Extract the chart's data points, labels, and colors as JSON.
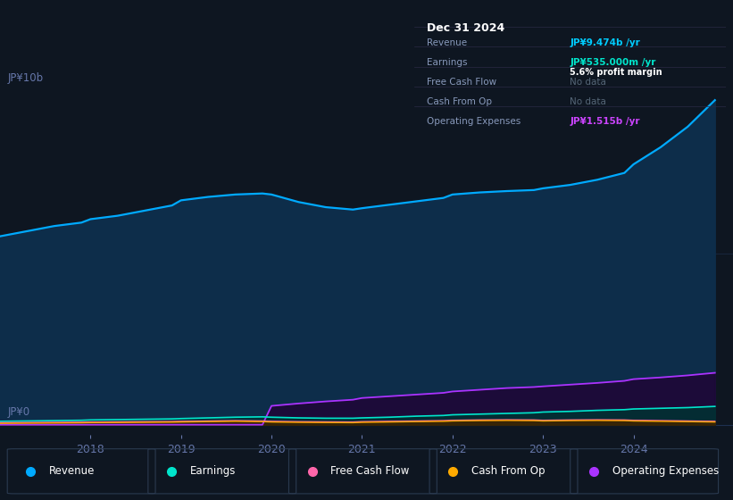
{
  "background_color": "#0e1621",
  "panel_bg_color": "#0e1621",
  "title_box": {
    "date": "Dec 31 2024",
    "rows": [
      {
        "label": "Revenue",
        "value": "JP¥9.474b /yr",
        "value_color": "#00ccff",
        "note": null
      },
      {
        "label": "Earnings",
        "value": "JP¥535.000m /yr",
        "value_color": "#00e5cc",
        "note": "5.6% profit margin"
      },
      {
        "label": "Free Cash Flow",
        "value": "No data",
        "value_color": "#556677",
        "note": null
      },
      {
        "label": "Cash From Op",
        "value": "No data",
        "value_color": "#556677",
        "note": null
      },
      {
        "label": "Operating Expenses",
        "value": "JP¥1.515b /yr",
        "value_color": "#cc44ff",
        "note": null
      }
    ]
  },
  "ylabel": "JP¥10b",
  "y0label": "JP¥0",
  "years": [
    2017.0,
    2017.3,
    2017.6,
    2017.9,
    2018.0,
    2018.3,
    2018.6,
    2018.9,
    2019.0,
    2019.3,
    2019.6,
    2019.9,
    2020.0,
    2020.3,
    2020.6,
    2020.9,
    2021.0,
    2021.3,
    2021.6,
    2021.9,
    2022.0,
    2022.3,
    2022.6,
    2022.9,
    2023.0,
    2023.3,
    2023.6,
    2023.9,
    2024.0,
    2024.3,
    2024.6,
    2024.9
  ],
  "revenue": [
    5.5,
    5.65,
    5.8,
    5.9,
    6.0,
    6.1,
    6.25,
    6.4,
    6.55,
    6.65,
    6.72,
    6.75,
    6.72,
    6.5,
    6.35,
    6.28,
    6.32,
    6.42,
    6.52,
    6.62,
    6.72,
    6.78,
    6.82,
    6.85,
    6.9,
    7.0,
    7.15,
    7.35,
    7.6,
    8.1,
    8.7,
    9.474
  ],
  "earnings": [
    0.1,
    0.11,
    0.12,
    0.13,
    0.14,
    0.15,
    0.16,
    0.17,
    0.18,
    0.2,
    0.22,
    0.23,
    0.22,
    0.2,
    0.19,
    0.19,
    0.2,
    0.22,
    0.25,
    0.27,
    0.29,
    0.31,
    0.33,
    0.35,
    0.37,
    0.39,
    0.42,
    0.44,
    0.46,
    0.48,
    0.5,
    0.535
  ],
  "free_cash_flow": [
    0.06,
    0.065,
    0.07,
    0.075,
    0.08,
    0.085,
    0.09,
    0.095,
    0.1,
    0.11,
    0.12,
    0.11,
    0.1,
    0.09,
    0.085,
    0.08,
    0.09,
    0.1,
    0.11,
    0.12,
    0.13,
    0.14,
    0.145,
    0.14,
    0.13,
    0.14,
    0.145,
    0.14,
    0.13,
    0.12,
    0.11,
    0.1
  ],
  "cash_from_op": [
    0.04,
    0.045,
    0.05,
    0.055,
    0.06,
    0.065,
    0.07,
    0.075,
    0.08,
    0.09,
    0.1,
    0.09,
    0.08,
    0.07,
    0.065,
    0.06,
    0.07,
    0.08,
    0.09,
    0.1,
    0.11,
    0.12,
    0.125,
    0.12,
    0.11,
    0.12,
    0.125,
    0.12,
    0.11,
    0.1,
    0.09,
    0.08
  ],
  "operating_expenses": [
    0.0,
    0.0,
    0.0,
    0.0,
    0.0,
    0.0,
    0.0,
    0.0,
    0.0,
    0.0,
    0.0,
    0.0,
    0.55,
    0.62,
    0.68,
    0.73,
    0.78,
    0.83,
    0.88,
    0.93,
    0.97,
    1.02,
    1.07,
    1.1,
    1.12,
    1.17,
    1.22,
    1.28,
    1.33,
    1.38,
    1.44,
    1.515
  ],
  "revenue_color": "#00aaff",
  "revenue_fill": "#0d2d4a",
  "earnings_color": "#00e5cc",
  "earnings_fill": "#003333",
  "free_cash_flow_color": "#ff66aa",
  "fcf_fill": "#3a1020",
  "cash_from_op_color": "#ffaa00",
  "cfo_fill": "#3a2800",
  "operating_expenses_color": "#aa33ff",
  "opex_fill": "#1e0838",
  "grid_color": "#1e3050",
  "tick_color": "#6677aa",
  "xticks": [
    2018,
    2019,
    2020,
    2021,
    2022,
    2023,
    2024
  ],
  "xlim": [
    2017.0,
    2025.1
  ],
  "ylim": [
    -0.3,
    10.5
  ],
  "ytick_pos": [
    0,
    5.0
  ],
  "legend_items": [
    {
      "label": "Revenue",
      "color": "#00aaff"
    },
    {
      "label": "Earnings",
      "color": "#00e5cc"
    },
    {
      "label": "Free Cash Flow",
      "color": "#ff66aa"
    },
    {
      "label": "Cash From Op",
      "color": "#ffaa00"
    },
    {
      "label": "Operating Expenses",
      "color": "#aa33ff"
    }
  ],
  "box_bg": "#0a0e18",
  "box_border": "#222233"
}
